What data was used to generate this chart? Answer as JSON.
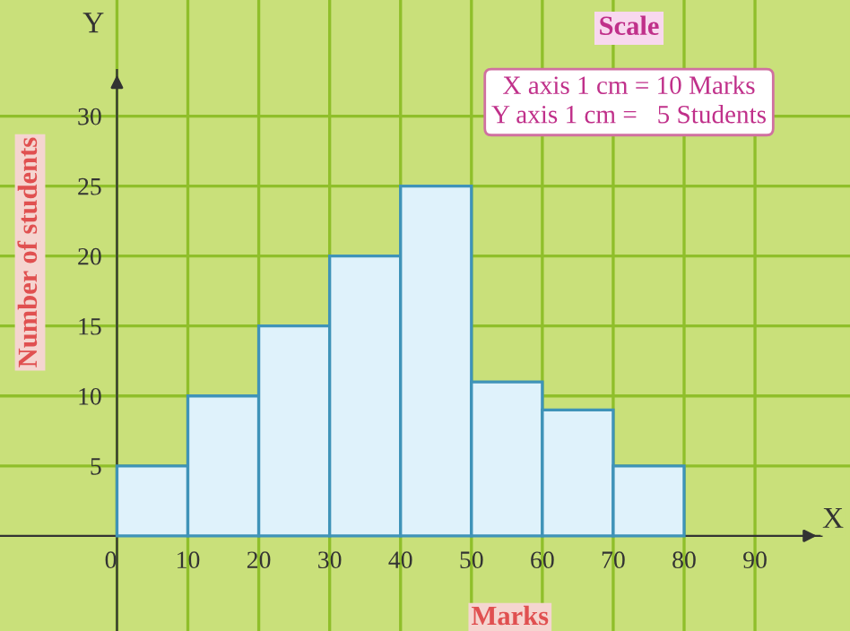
{
  "chart_data": {
    "type": "histogram",
    "xlabel": "Marks",
    "ylabel": "Number of students",
    "bins": [
      0,
      10,
      20,
      30,
      40,
      50,
      60,
      70,
      80
    ],
    "values": [
      5,
      10,
      15,
      20,
      25,
      11,
      9,
      5
    ],
    "color": "#dff2fb",
    "xlim": [
      -16.5,
      103.4
    ],
    "ylim": [
      -6.8,
      38.3
    ],
    "xticks": [
      0,
      10,
      20,
      30,
      40,
      50,
      60,
      70,
      80,
      90
    ],
    "yticks": [
      5,
      10,
      15,
      20,
      25,
      30
    ],
    "grid": true,
    "annotations": [
      "Scale",
      "X axis 1 cm = 10 Marks\nY axis 1 cm =   5 Students",
      "X",
      "Y"
    ]
  }
}
